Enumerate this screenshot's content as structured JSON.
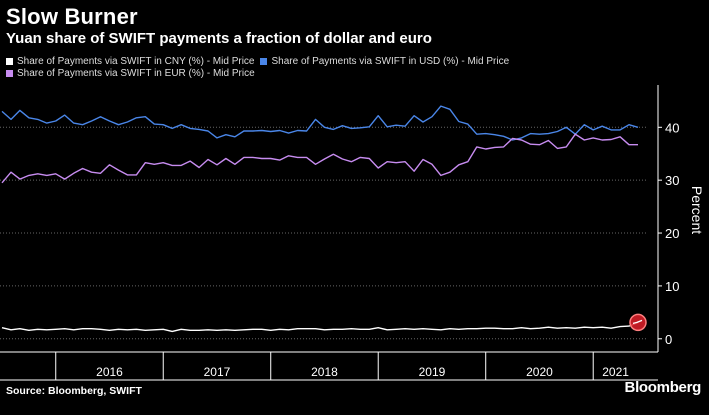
{
  "header": {
    "title": "Slow Burner",
    "subtitle": "Yuan share of SWIFT payments a fraction of dollar and euro"
  },
  "footer": {
    "source": "Source: Bloomberg, SWIFT",
    "brand": "Bloomberg"
  },
  "colors": {
    "cny": "#ffffff",
    "usd": "#4a86e8",
    "eur": "#c78cf0",
    "highlight": "#e0202a",
    "grid": "#666666"
  },
  "chart_data": {
    "type": "line",
    "title": "Yuan share of SWIFT payments a fraction of dollar and euro",
    "ylabel": "Percent",
    "xlabel": "",
    "ylim": [
      -2.5,
      48
    ],
    "yticks": [
      0,
      10,
      20,
      30,
      40
    ],
    "year_labels": [
      "2016",
      "2017",
      "2018",
      "2019",
      "2020",
      "2021"
    ],
    "x_start": "2015-07",
    "x_end": "2021-11",
    "legend": [
      {
        "key": "cny",
        "label": "Share of Payments via SWIFT in CNY (%) - Mid Price"
      },
      {
        "key": "usd",
        "label": "Share of Payments via SWIFT in USD (%) - Mid Price"
      },
      {
        "key": "eur",
        "label": "Share of Payments via SWIFT in EUR (%) - Mid Price"
      }
    ],
    "series": [
      {
        "key": "usd",
        "name": "Share of Payments via SWIFT in USD (%) - Mid Price",
        "values": [
          43.0,
          41.5,
          43.2,
          41.8,
          41.5,
          40.8,
          41.2,
          42.3,
          40.8,
          40.5,
          41.2,
          42.0,
          41.2,
          40.5,
          41.0,
          41.8,
          42.0,
          40.6,
          40.5,
          39.8,
          40.5,
          39.8,
          39.6,
          39.3,
          38.0,
          38.6,
          38.2,
          39.3,
          39.3,
          39.4,
          39.2,
          39.4,
          38.9,
          39.4,
          39.3,
          41.5,
          40.0,
          39.6,
          40.3,
          39.8,
          39.9,
          40.1,
          42.2,
          40.1,
          40.4,
          40.2,
          42.2,
          41.0,
          42.0,
          44.0,
          43.4,
          41.1,
          40.6,
          38.7,
          38.8,
          38.6,
          38.3,
          37.6,
          38.0,
          38.8,
          38.7,
          38.8,
          39.2,
          40.0,
          38.7,
          40.5,
          39.5,
          40.2,
          39.5,
          39.5,
          40.5,
          40.0
        ]
      },
      {
        "key": "eur",
        "name": "Share of Payments via SWIFT in EUR (%) - Mid Price",
        "values": [
          29.5,
          31.5,
          30.2,
          30.9,
          31.2,
          30.9,
          31.2,
          30.2,
          31.3,
          32.2,
          31.5,
          31.3,
          32.9,
          31.9,
          31.0,
          31.0,
          33.3,
          33.0,
          33.3,
          32.8,
          32.8,
          33.6,
          32.4,
          33.9,
          32.9,
          34.1,
          33.0,
          34.3,
          34.3,
          34.1,
          34.1,
          33.8,
          34.6,
          34.3,
          34.3,
          33.0,
          34.0,
          34.9,
          34.0,
          33.5,
          34.3,
          34.1,
          32.3,
          33.5,
          33.3,
          33.5,
          31.7,
          33.9,
          33.0,
          30.9,
          31.5,
          32.9,
          33.5,
          36.3,
          35.9,
          36.2,
          36.3,
          37.9,
          37.6,
          36.8,
          36.7,
          37.5,
          36.0,
          36.3,
          38.7,
          37.6,
          38.0,
          37.6,
          37.7,
          38.2,
          36.7,
          36.7
        ]
      },
      {
        "key": "cny",
        "name": "Share of Payments via SWIFT in CNY (%) - Mid Price",
        "values": [
          2.1,
          1.7,
          1.9,
          1.6,
          1.8,
          1.7,
          1.8,
          1.9,
          1.7,
          1.9,
          1.9,
          1.8,
          1.6,
          1.8,
          1.7,
          1.8,
          1.6,
          1.7,
          1.8,
          1.4,
          1.8,
          1.6,
          1.6,
          1.7,
          1.6,
          1.7,
          1.6,
          1.7,
          1.8,
          1.8,
          1.6,
          1.8,
          1.7,
          1.9,
          1.9,
          1.9,
          1.7,
          1.8,
          1.8,
          1.9,
          1.8,
          1.8,
          2.1,
          1.7,
          1.8,
          1.9,
          1.8,
          1.9,
          1.8,
          1.7,
          1.9,
          1.8,
          1.9,
          1.9,
          2.0,
          2.0,
          1.9,
          1.9,
          2.1,
          1.9,
          2.0,
          2.2,
          2.0,
          2.1,
          2.0,
          2.2,
          2.1,
          2.2,
          2.0,
          2.3,
          2.4,
          3.1
        ]
      }
    ],
    "highlight": {
      "series": "cny",
      "index": 71,
      "value": 3.1
    }
  }
}
